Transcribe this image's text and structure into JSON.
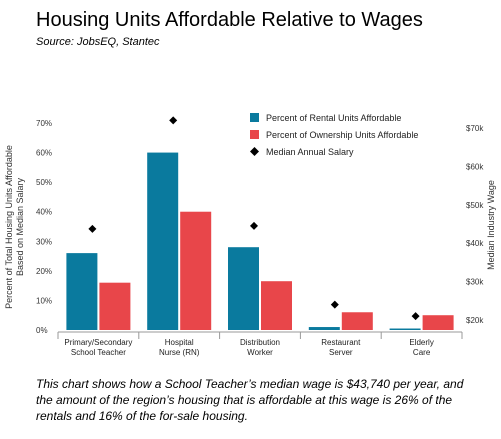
{
  "header": {
    "title": "Housing Units Affordable Relative to Wages",
    "source": "Source: JobsEQ, Stantec"
  },
  "caption": "This chart shows how a School Teacher’s median wage is $43,740 per year, and the amount of the region’s housing that is affordable at this wage is 26% of the rentals and 16% of the for-sale housing.",
  "colors": {
    "rental": "#0a7a9e",
    "ownership": "#e8464a",
    "salary": "#000000"
  },
  "chart_data": {
    "type": "bar",
    "categories": [
      [
        "Primary/Secondary",
        "School Teacher"
      ],
      [
        "Hospital",
        "Nurse (RN)"
      ],
      [
        "Distribution",
        "Worker"
      ],
      [
        "Restaurant",
        "Server"
      ],
      [
        "Elderly",
        "Care"
      ]
    ],
    "series": [
      {
        "name": "Percent of Rental Units Affordable",
        "axis": "left",
        "kind": "bar",
        "values": [
          26,
          60,
          28,
          1,
          0.5
        ]
      },
      {
        "name": "Percent of Ownership Units Affordable",
        "axis": "left",
        "kind": "bar",
        "values": [
          16,
          40,
          16.5,
          6,
          5
        ]
      },
      {
        "name": "Median Annual Salary",
        "axis": "right",
        "kind": "marker",
        "values": [
          43740,
          72000,
          44500,
          24000,
          21000
        ]
      }
    ],
    "ylabel_left": [
      "Percent of Total Housing Units Affordable",
      "Based on Median Salary"
    ],
    "ylabel_right": "Median Industry Wage",
    "ylim_left": [
      0,
      70
    ],
    "ylim_right": [
      17000,
      78000
    ],
    "yticks_left": [
      "0%",
      "10%",
      "20%",
      "30%",
      "40%",
      "50%",
      "60%",
      "70%"
    ],
    "yticks_right": [
      "$20k",
      "$30k",
      "$40k",
      "$50k",
      "$60k",
      "$70k"
    ],
    "legend_position": "top-right",
    "grid": false
  }
}
